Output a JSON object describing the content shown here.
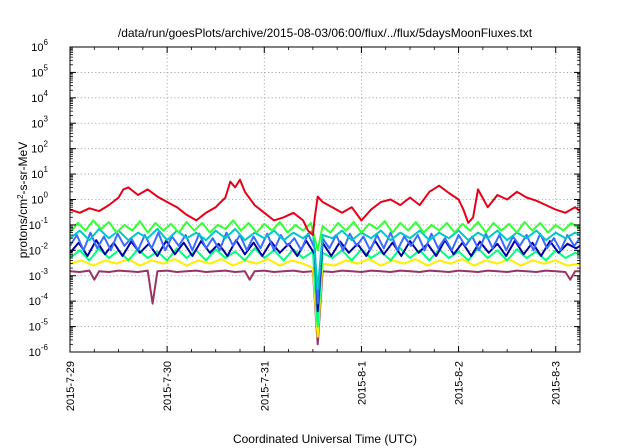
{
  "chart_data": {
    "type": "line",
    "title": "/data/run/goesPlots/archive/2015-08-03/06:00/flux/../flux/5daysMoonFluxes.txt",
    "xlabel": "Coordinated Universal Time (UTC)",
    "ylabel": {
      "prefix": "protons/cm",
      "sup": "2",
      "suffix": "-s-sr-MeV"
    },
    "yscale": "log",
    "ylim": [
      1e-06,
      1000000.0
    ],
    "xlim": [
      "2015-07-29T00:00",
      "2015-08-03T06:00"
    ],
    "grid": true,
    "legend": "none",
    "x_ticks": [
      "2015-7-29",
      "2015-7-30",
      "2015-7-31",
      "2015-8-1",
      "2015-8-2",
      "2015-8-3"
    ],
    "y_ticks": [
      {
        "base": "10",
        "exp": "6"
      },
      {
        "base": "10",
        "exp": "5"
      },
      {
        "base": "10",
        "exp": "4"
      },
      {
        "base": "10",
        "exp": "3"
      },
      {
        "base": "10",
        "exp": "2"
      },
      {
        "base": "10",
        "exp": "1"
      },
      {
        "base": "10",
        "exp": "0"
      },
      {
        "base": "10",
        "exp": "-1"
      },
      {
        "base": "10",
        "exp": "-2"
      },
      {
        "base": "10",
        "exp": "-3"
      },
      {
        "base": "10",
        "exp": "-4"
      },
      {
        "base": "10",
        "exp": "-5"
      },
      {
        "base": "10",
        "exp": "-6"
      }
    ],
    "series": [
      {
        "color": "#e8001a",
        "x": [
          0.0,
          0.1,
          0.2,
          0.3,
          0.4,
          0.5,
          0.55,
          0.6,
          0.7,
          0.8,
          0.9,
          1.0,
          1.1,
          1.2,
          1.3,
          1.4,
          1.5,
          1.6,
          1.65,
          1.7,
          1.75,
          1.8,
          1.9,
          2.0,
          2.1,
          2.2,
          2.3,
          2.4,
          2.45,
          2.5,
          2.52,
          2.55,
          2.6,
          2.7,
          2.8,
          2.9,
          3.0,
          3.1,
          3.2,
          3.3,
          3.4,
          3.5,
          3.6,
          3.7,
          3.8,
          3.9,
          4.0,
          4.05,
          4.1,
          4.15,
          4.2,
          4.3,
          4.4,
          4.5,
          4.6,
          4.7,
          4.8,
          4.9,
          5.0,
          5.1,
          5.2,
          5.25
        ],
        "y": [
          0.4,
          0.3,
          0.45,
          0.35,
          0.6,
          1.2,
          2.5,
          3.0,
          1.5,
          2.5,
          1.3,
          0.8,
          0.5,
          0.25,
          0.15,
          0.3,
          0.5,
          1.2,
          5.0,
          3.0,
          6.0,
          2.0,
          0.6,
          0.3,
          0.15,
          0.2,
          0.3,
          0.15,
          0.06,
          0.04,
          0.2,
          1.3,
          0.8,
          0.5,
          0.3,
          0.5,
          0.15,
          0.4,
          0.8,
          1.0,
          0.6,
          1.2,
          0.6,
          2.0,
          3.5,
          1.8,
          1.0,
          0.4,
          0.12,
          0.2,
          2.5,
          0.5,
          1.5,
          1.0,
          2.0,
          1.2,
          0.9,
          0.6,
          0.4,
          0.3,
          0.5,
          0.35
        ]
      },
      {
        "color": "#33ff33",
        "x": [
          0.0,
          0.08,
          0.16,
          0.24,
          0.32,
          0.4,
          0.48,
          0.56,
          0.64,
          0.72,
          0.8,
          0.88,
          0.96,
          1.04,
          1.12,
          1.2,
          1.28,
          1.36,
          1.44,
          1.52,
          1.6,
          1.68,
          1.76,
          1.84,
          1.92,
          2.0,
          2.08,
          2.16,
          2.24,
          2.32,
          2.4,
          2.48,
          2.55,
          2.6,
          2.68,
          2.76,
          2.84,
          2.92,
          3.0,
          3.08,
          3.16,
          3.24,
          3.32,
          3.4,
          3.48,
          3.56,
          3.64,
          3.72,
          3.8,
          3.88,
          3.96,
          4.04,
          4.12,
          4.2,
          4.28,
          4.36,
          4.44,
          4.52,
          4.6,
          4.68,
          4.76,
          4.84,
          4.92,
          5.0,
          5.08,
          5.16,
          5.25
        ],
        "y": [
          0.05,
          0.12,
          0.06,
          0.15,
          0.07,
          0.13,
          0.05,
          0.1,
          0.06,
          0.14,
          0.05,
          0.12,
          0.06,
          0.11,
          0.05,
          0.13,
          0.06,
          0.12,
          0.05,
          0.1,
          0.07,
          0.15,
          0.06,
          0.12,
          0.05,
          0.11,
          0.06,
          0.13,
          0.05,
          0.1,
          0.06,
          0.12,
          0.01,
          0.09,
          0.05,
          0.12,
          0.06,
          0.13,
          0.05,
          0.11,
          0.07,
          0.14,
          0.05,
          0.12,
          0.06,
          0.13,
          0.05,
          0.1,
          0.06,
          0.12,
          0.05,
          0.11,
          0.06,
          0.13,
          0.05,
          0.12,
          0.06,
          0.11,
          0.05,
          0.13,
          0.06,
          0.12,
          0.05,
          0.1,
          0.06,
          0.12,
          0.07
        ]
      },
      {
        "color": "#00c8c8",
        "x": [
          0.0,
          0.1,
          0.2,
          0.3,
          0.4,
          0.5,
          0.6,
          0.7,
          0.8,
          0.9,
          1.0,
          1.1,
          1.2,
          1.3,
          1.4,
          1.5,
          1.6,
          1.7,
          1.8,
          1.9,
          2.0,
          2.1,
          2.2,
          2.3,
          2.4,
          2.5,
          2.55,
          2.6,
          2.7,
          2.8,
          2.9,
          3.0,
          3.1,
          3.2,
          3.3,
          3.4,
          3.5,
          3.6,
          3.7,
          3.8,
          3.9,
          4.0,
          4.1,
          4.2,
          4.3,
          4.4,
          4.5,
          4.6,
          4.7,
          4.8,
          4.9,
          5.0,
          5.1,
          5.2,
          5.25
        ],
        "y": [
          0.03,
          0.06,
          0.025,
          0.07,
          0.03,
          0.06,
          0.025,
          0.05,
          0.03,
          0.07,
          0.025,
          0.06,
          0.03,
          0.05,
          0.025,
          0.06,
          0.03,
          0.07,
          0.025,
          0.05,
          0.03,
          0.06,
          0.025,
          0.05,
          0.03,
          0.06,
          0.0003,
          0.04,
          0.03,
          0.06,
          0.025,
          0.05,
          0.03,
          0.06,
          0.025,
          0.05,
          0.03,
          0.06,
          0.025,
          0.05,
          0.03,
          0.06,
          0.025,
          0.05,
          0.03,
          0.06,
          0.025,
          0.05,
          0.03,
          0.06,
          0.025,
          0.05,
          0.03,
          0.05,
          0.04
        ]
      },
      {
        "color": "#3c6cff",
        "x": [
          0.0,
          0.07,
          0.14,
          0.21,
          0.28,
          0.35,
          0.42,
          0.49,
          0.56,
          0.63,
          0.7,
          0.77,
          0.84,
          0.91,
          0.98,
          1.05,
          1.12,
          1.19,
          1.26,
          1.33,
          1.4,
          1.47,
          1.54,
          1.61,
          1.68,
          1.75,
          1.82,
          1.89,
          1.96,
          2.03,
          2.1,
          2.17,
          2.24,
          2.31,
          2.38,
          2.45,
          2.52,
          2.55,
          2.6,
          2.67,
          2.74,
          2.81,
          2.88,
          2.95,
          3.02,
          3.09,
          3.16,
          3.23,
          3.3,
          3.37,
          3.44,
          3.51,
          3.58,
          3.65,
          3.72,
          3.79,
          3.86,
          3.93,
          4.0,
          4.07,
          4.14,
          4.21,
          4.28,
          4.35,
          4.42,
          4.49,
          4.56,
          4.63,
          4.7,
          4.77,
          4.84,
          4.91,
          4.98,
          5.05,
          5.12,
          5.19,
          5.25
        ],
        "y": [
          0.015,
          0.04,
          0.01,
          0.05,
          0.012,
          0.035,
          0.01,
          0.045,
          0.015,
          0.03,
          0.01,
          0.04,
          0.012,
          0.05,
          0.01,
          0.035,
          0.015,
          0.04,
          0.01,
          0.045,
          0.012,
          0.03,
          0.01,
          0.05,
          0.015,
          0.04,
          0.01,
          0.035,
          0.012,
          0.045,
          0.01,
          0.04,
          0.015,
          0.03,
          0.01,
          0.045,
          0.012,
          8e-05,
          0.03,
          0.012,
          0.04,
          0.01,
          0.045,
          0.015,
          0.035,
          0.01,
          0.04,
          0.012,
          0.05,
          0.01,
          0.035,
          0.015,
          0.04,
          0.01,
          0.045,
          0.012,
          0.03,
          0.01,
          0.04,
          0.015,
          0.035,
          0.01,
          0.045,
          0.012,
          0.04,
          0.01,
          0.035,
          0.015,
          0.04,
          0.01,
          0.045,
          0.012,
          0.03,
          0.01,
          0.04,
          0.015,
          0.03
        ]
      },
      {
        "color": "#0000a0",
        "x": [
          0.0,
          0.09,
          0.18,
          0.27,
          0.36,
          0.45,
          0.54,
          0.63,
          0.72,
          0.81,
          0.9,
          0.99,
          1.08,
          1.17,
          1.26,
          1.35,
          1.44,
          1.53,
          1.62,
          1.71,
          1.8,
          1.89,
          1.98,
          2.07,
          2.16,
          2.25,
          2.34,
          2.43,
          2.52,
          2.55,
          2.6,
          2.69,
          2.78,
          2.87,
          2.96,
          3.05,
          3.14,
          3.23,
          3.32,
          3.41,
          3.5,
          3.59,
          3.68,
          3.77,
          3.86,
          3.95,
          4.04,
          4.13,
          4.22,
          4.31,
          4.4,
          4.49,
          4.58,
          4.67,
          4.76,
          4.85,
          4.94,
          5.03,
          5.12,
          5.21,
          5.25
        ],
        "y": [
          0.008,
          0.02,
          0.006,
          0.025,
          0.007,
          0.02,
          0.006,
          0.022,
          0.008,
          0.018,
          0.006,
          0.024,
          0.007,
          0.02,
          0.006,
          0.023,
          0.008,
          0.018,
          0.006,
          0.025,
          0.007,
          0.02,
          0.006,
          0.022,
          0.008,
          0.018,
          0.006,
          0.024,
          0.007,
          4e-05,
          0.02,
          0.006,
          0.022,
          0.008,
          0.018,
          0.006,
          0.024,
          0.007,
          0.02,
          0.006,
          0.023,
          0.008,
          0.018,
          0.006,
          0.025,
          0.007,
          0.02,
          0.006,
          0.022,
          0.008,
          0.018,
          0.006,
          0.024,
          0.007,
          0.02,
          0.006,
          0.023,
          0.008,
          0.018,
          0.012,
          0.015
        ]
      },
      {
        "color": "#00ff80",
        "x": [
          0.0,
          0.1,
          0.2,
          0.3,
          0.4,
          0.5,
          0.6,
          0.7,
          0.8,
          0.9,
          1.0,
          1.1,
          1.2,
          1.3,
          1.4,
          1.5,
          1.6,
          1.7,
          1.8,
          1.9,
          2.0,
          2.1,
          2.2,
          2.3,
          2.4,
          2.5,
          2.55,
          2.6,
          2.7,
          2.8,
          2.9,
          3.0,
          3.1,
          3.2,
          3.3,
          3.4,
          3.5,
          3.6,
          3.7,
          3.8,
          3.9,
          4.0,
          4.1,
          4.2,
          4.3,
          4.4,
          4.5,
          4.6,
          4.7,
          4.8,
          4.9,
          5.0,
          5.1,
          5.2,
          5.25
        ],
        "y": [
          0.005,
          0.01,
          0.004,
          0.012,
          0.005,
          0.01,
          0.004,
          0.011,
          0.005,
          0.009,
          0.004,
          0.012,
          0.005,
          0.01,
          0.004,
          0.011,
          0.005,
          0.009,
          0.004,
          0.012,
          0.005,
          0.01,
          0.004,
          0.011,
          0.005,
          0.009,
          1e-05,
          0.008,
          0.005,
          0.01,
          0.004,
          0.011,
          0.005,
          0.009,
          0.004,
          0.012,
          0.005,
          0.01,
          0.004,
          0.011,
          0.005,
          0.009,
          0.004,
          0.012,
          0.005,
          0.01,
          0.004,
          0.011,
          0.005,
          0.009,
          0.004,
          0.01,
          0.005,
          0.008,
          0.007
        ]
      },
      {
        "color": "#ffee00",
        "x": [
          0.0,
          0.12,
          0.24,
          0.36,
          0.48,
          0.6,
          0.72,
          0.84,
          0.96,
          1.08,
          1.2,
          1.32,
          1.44,
          1.56,
          1.68,
          1.8,
          1.92,
          2.04,
          2.16,
          2.28,
          2.4,
          2.5,
          2.55,
          2.6,
          2.72,
          2.84,
          2.96,
          3.08,
          3.2,
          3.32,
          3.44,
          3.56,
          3.68,
          3.8,
          3.92,
          4.04,
          4.16,
          4.28,
          4.4,
          4.52,
          4.64,
          4.76,
          4.88,
          5.0,
          5.12,
          5.25
        ],
        "y": [
          0.003,
          0.004,
          0.0025,
          0.004,
          0.003,
          0.0045,
          0.0025,
          0.004,
          0.003,
          0.0045,
          0.0025,
          0.004,
          0.003,
          0.0045,
          0.0025,
          0.004,
          0.003,
          0.0045,
          0.0025,
          0.004,
          0.003,
          0.002,
          4e-06,
          0.003,
          0.0025,
          0.004,
          0.003,
          0.0045,
          0.0025,
          0.004,
          0.003,
          0.0045,
          0.0025,
          0.004,
          0.003,
          0.0045,
          0.0025,
          0.004,
          0.003,
          0.0045,
          0.0025,
          0.004,
          0.003,
          0.004,
          0.0025,
          0.003
        ]
      },
      {
        "color": "#993366",
        "x": [
          0.0,
          0.1,
          0.2,
          0.25,
          0.3,
          0.4,
          0.5,
          0.6,
          0.7,
          0.8,
          0.85,
          0.9,
          1.0,
          1.1,
          1.2,
          1.3,
          1.4,
          1.5,
          1.6,
          1.7,
          1.8,
          1.85,
          1.9,
          2.0,
          2.1,
          2.2,
          2.3,
          2.4,
          2.5,
          2.55,
          2.6,
          2.7,
          2.8,
          2.9,
          3.0,
          3.1,
          3.2,
          3.3,
          3.4,
          3.5,
          3.6,
          3.7,
          3.8,
          3.9,
          4.0,
          4.1,
          4.2,
          4.3,
          4.4,
          4.5,
          4.6,
          4.7,
          4.8,
          4.9,
          5.0,
          5.1,
          5.15,
          5.2,
          5.25
        ],
        "y": [
          0.0015,
          0.0014,
          0.0016,
          0.0007,
          0.0015,
          0.0014,
          0.0016,
          0.0015,
          0.0014,
          0.0016,
          8e-05,
          0.0015,
          0.0016,
          0.0014,
          0.0015,
          0.0016,
          0.0014,
          0.0015,
          0.0016,
          0.0014,
          0.0015,
          0.0007,
          0.0015,
          0.0016,
          0.0014,
          0.0015,
          0.0016,
          0.0014,
          0.0015,
          2e-06,
          0.0015,
          0.0014,
          0.0016,
          0.0015,
          0.0014,
          0.0016,
          0.0015,
          0.0014,
          0.0016,
          0.0015,
          0.0014,
          0.0016,
          0.0015,
          0.0014,
          0.0016,
          0.0015,
          0.0014,
          0.0016,
          0.0015,
          0.0014,
          0.0016,
          0.0015,
          0.0014,
          0.0016,
          0.0015,
          0.0014,
          0.0007,
          0.0015,
          0.0015
        ]
      }
    ]
  }
}
